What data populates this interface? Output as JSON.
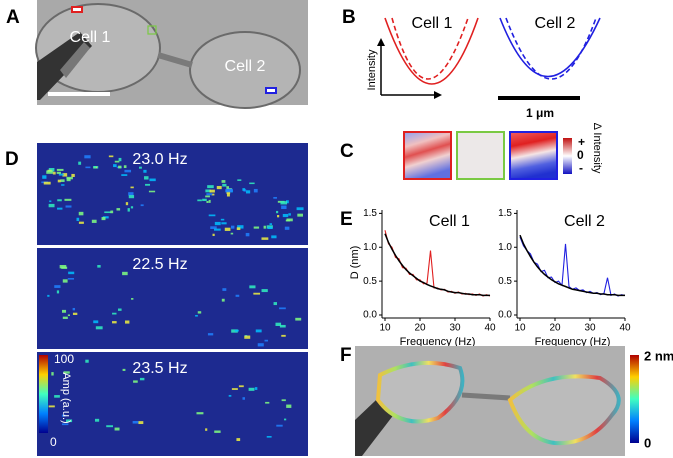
{
  "panels": {
    "A": {
      "label": "A",
      "cell1": "Cell 1",
      "cell2": "Cell 2"
    },
    "B": {
      "label": "B",
      "cell1": "Cell 1",
      "cell2": "Cell 2",
      "ylabel": "Intensity",
      "scale": "1 μm"
    },
    "C": {
      "label": "C",
      "colorbar_title": "Δ Intensity",
      "plus": "+",
      "zero": "0",
      "minus": "-"
    },
    "D": {
      "label": "D",
      "frequencies": [
        "23.0 Hz",
        "22.5 Hz",
        "23.5 Hz"
      ],
      "colorbar_max": "100",
      "colorbar_min": "0",
      "colorbar_title": "Amp (a.u.)"
    },
    "E": {
      "label": "E"
    },
    "F": {
      "label": "F",
      "colorbar_max": "2 nm",
      "colorbar_min": "0"
    }
  },
  "chart_data": [
    {
      "type": "line",
      "title": "Cell 1",
      "xlabel": "Frequency (Hz)",
      "ylabel": "D (nm)",
      "x": [
        10,
        11,
        12,
        13,
        14,
        15,
        16,
        17,
        18,
        19,
        20,
        21,
        22,
        23,
        24,
        25,
        26,
        27,
        28,
        29,
        30,
        31,
        32,
        33,
        34,
        35,
        36,
        37,
        38,
        39,
        40
      ],
      "series": [
        {
          "color": "#e02020",
          "values": [
            1.25,
            1.05,
            1.0,
            0.85,
            0.83,
            0.7,
            0.69,
            0.6,
            0.6,
            0.52,
            0.52,
            0.46,
            0.47,
            0.95,
            0.4,
            0.4,
            0.37,
            0.38,
            0.34,
            0.35,
            0.32,
            0.34,
            0.31,
            0.32,
            0.3,
            0.31,
            0.29,
            0.31,
            0.28,
            0.3,
            0.28
          ]
        },
        {
          "color": "#000000",
          "values": [
            1.2,
            1.07,
            0.97,
            0.88,
            0.8,
            0.73,
            0.67,
            0.62,
            0.58,
            0.54,
            0.5,
            0.48,
            0.45,
            0.43,
            0.41,
            0.39,
            0.38,
            0.37,
            0.35,
            0.34,
            0.33,
            0.33,
            0.32,
            0.31,
            0.31,
            0.3,
            0.3,
            0.3,
            0.29,
            0.29,
            0.29
          ]
        }
      ],
      "xlim": [
        10,
        40
      ],
      "xticks": [
        10,
        20,
        30,
        40
      ],
      "ylim": [
        0,
        1.55
      ],
      "yticks": [
        {
          "value": 0,
          "label": "0.0"
        },
        0.5,
        {
          "value": 1,
          "label": "1.0"
        },
        1.5
      ]
    },
    {
      "type": "line",
      "title": "Cell 2",
      "xlabel": "Frequency (Hz)",
      "x": [
        10,
        11,
        12,
        13,
        14,
        15,
        16,
        17,
        18,
        19,
        20,
        21,
        22,
        23,
        24,
        25,
        26,
        27,
        28,
        29,
        30,
        31,
        32,
        33,
        34,
        35,
        36,
        37,
        38,
        39,
        40
      ],
      "series": [
        {
          "color": "#2020e0",
          "values": [
            1.15,
            1.02,
            0.95,
            0.9,
            0.78,
            0.75,
            0.64,
            0.66,
            0.55,
            0.56,
            0.48,
            0.5,
            0.44,
            1.05,
            0.42,
            0.38,
            0.4,
            0.36,
            0.37,
            0.33,
            0.35,
            0.32,
            0.33,
            0.3,
            0.32,
            0.55,
            0.29,
            0.31,
            0.28,
            0.3,
            0.29
          ]
        },
        {
          "color": "#000000",
          "values": [
            1.18,
            1.05,
            0.95,
            0.86,
            0.78,
            0.71,
            0.65,
            0.6,
            0.56,
            0.52,
            0.49,
            0.46,
            0.44,
            0.42,
            0.4,
            0.38,
            0.37,
            0.36,
            0.35,
            0.34,
            0.33,
            0.32,
            0.32,
            0.31,
            0.31,
            0.3,
            0.3,
            0.3,
            0.29,
            0.29,
            0.29
          ]
        }
      ],
      "xlim": [
        10,
        40
      ],
      "xticks": [
        10,
        20,
        30,
        40
      ],
      "ylim": [
        0,
        1.55
      ],
      "yticks": [
        {
          "value": 0,
          "label": "0.0"
        },
        0.5,
        {
          "value": 1,
          "label": "1.0"
        },
        1.5
      ]
    }
  ]
}
